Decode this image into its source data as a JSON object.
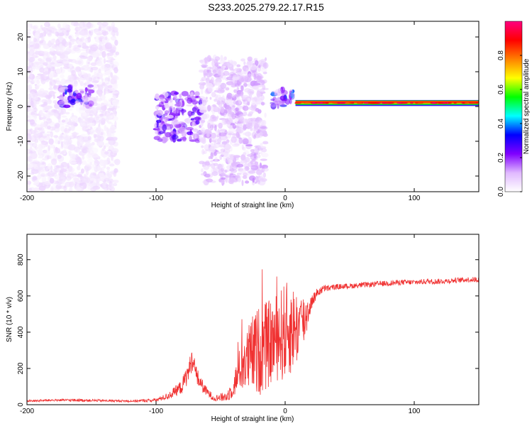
{
  "title": "S233.2025.279.22.17.R15",
  "colors": {
    "snr_line": "#f03030",
    "axis": "#000000"
  },
  "chart_data": [
    {
      "type": "heatmap",
      "xlabel": "Height of straight line (km)",
      "ylabel": "Frequency (Hz)",
      "xlim": [
        -200,
        150
      ],
      "ylim": [
        -24.5,
        24.5
      ],
      "xticks": [
        -200,
        -100,
        0,
        100
      ],
      "yticks": [
        -20,
        -10,
        0,
        10,
        20
      ],
      "colorbar": {
        "label": "Normalized spectral amplitude",
        "range": [
          0.0,
          1.0
        ],
        "ticks": [
          0.0,
          0.2,
          0.4,
          0.6,
          0.8
        ],
        "tick_labels": [
          "0.0",
          "0.2",
          "0.4",
          "0.6",
          "0.8"
        ],
        "colormap": [
          "#ffffff",
          "#e0b8ff",
          "#8000ff",
          "#0000ff",
          "#00ffff",
          "#00ff00",
          "#ffff00",
          "#ff8000",
          "#ff0000",
          "#ff0080"
        ]
      },
      "features": [
        {
          "x_range": [
            -200,
            -130
          ],
          "freq_range": [
            -24,
            24
          ],
          "amplitude": 0.05
        },
        {
          "x_range": [
            -175,
            -150
          ],
          "freq_range": [
            0,
            6
          ],
          "amplitude": 0.25
        },
        {
          "x_range": [
            -100,
            -65
          ],
          "freq_range": [
            -10,
            4
          ],
          "amplitude": 0.2
        },
        {
          "x_range": [
            -65,
            -15
          ],
          "freq_range": [
            -22,
            14
          ],
          "amplitude": 0.1
        },
        {
          "x_range": [
            -10,
            8
          ],
          "freq_range": [
            0,
            5
          ],
          "amplitude": 0.3
        },
        {
          "x_range": [
            8,
            150
          ],
          "freq_range": [
            0.5,
            1.5
          ],
          "amplitude": 0.85
        }
      ]
    },
    {
      "type": "line",
      "xlabel": "Height of straight line (km)",
      "ylabel": "SNR (10 * v/v)",
      "xlim": [
        -200,
        150
      ],
      "ylim": [
        0,
        940
      ],
      "xticks": [
        -200,
        -100,
        0,
        100
      ],
      "yticks": [
        0,
        200,
        400,
        600,
        800
      ],
      "series": [
        {
          "x": [
            -200,
            -180,
            -160,
            -140,
            -120,
            -100,
            -90,
            -80,
            -75,
            -72,
            -68,
            -62,
            -55,
            -45,
            -40,
            -35,
            -30,
            -25,
            -20,
            -15,
            -10,
            -5,
            0,
            5,
            10,
            15,
            20,
            25,
            30,
            40,
            50,
            60,
            70,
            80,
            90,
            100,
            110,
            120,
            130,
            140,
            150
          ],
          "y": [
            20,
            25,
            25,
            22,
            20,
            25,
            50,
            100,
            180,
            250,
            150,
            80,
            35,
            45,
            100,
            200,
            240,
            280,
            300,
            320,
            350,
            380,
            400,
            420,
            430,
            470,
            560,
            620,
            640,
            650,
            655,
            660,
            665,
            670,
            675,
            675,
            680,
            680,
            685,
            690,
            690
          ],
          "noise": [
            6,
            6,
            8,
            6,
            6,
            10,
            20,
            40,
            60,
            60,
            50,
            30,
            15,
            30,
            60,
            120,
            180,
            220,
            250,
            250,
            230,
            250,
            280,
            250,
            200,
            150,
            40,
            25,
            20,
            15,
            15,
            15,
            15,
            15,
            15,
            15,
            15,
            15,
            15,
            15,
            15
          ]
        }
      ]
    }
  ]
}
